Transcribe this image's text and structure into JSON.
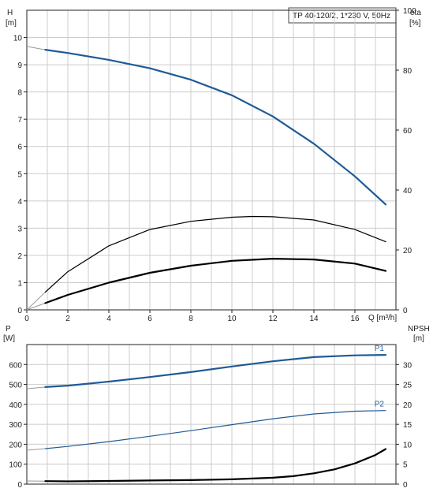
{
  "colors": {
    "blue": "#1f5a96",
    "black": "#000000",
    "grid": "#cccccc"
  },
  "chart_data": [
    {
      "type": "line",
      "title": "TP 40-120/2, 1*230 V, 50Hz",
      "xlabel": "Q [m³/h]",
      "ylabel_left": {
        "name": "H",
        "unit": "[m]"
      },
      "ylabel_right": {
        "name": "eta",
        "unit": "[%]"
      },
      "xlim": [
        0,
        18
      ],
      "ylim_left": [
        0,
        11
      ],
      "ylim_right": [
        0,
        100
      ],
      "x_ticks": [
        "0",
        "2",
        "4",
        "6",
        "8",
        "10",
        "12",
        "14",
        "16"
      ],
      "y_ticks_left": [
        "0",
        "1",
        "2",
        "3",
        "4",
        "5",
        "6",
        "7",
        "8",
        "9",
        "10"
      ],
      "y_ticks_right": [
        "0",
        "20",
        "40",
        "60",
        "80",
        "100"
      ],
      "grid": true,
      "series": [
        {
          "color": "#1f5a96",
          "width": 2.2,
          "axis": "left",
          "ref": {
            "x": [
              0,
              0.9
            ],
            "y": [
              9.67,
              9.55
            ]
          },
          "x": [
            0.9,
            2,
            4,
            6,
            8,
            10,
            12,
            14,
            16,
            17.5
          ],
          "y": [
            9.55,
            9.43,
            9.18,
            8.87,
            8.45,
            7.88,
            7.1,
            6.1,
            4.9,
            3.87
          ]
        },
        {
          "color": "#000000",
          "width": 1.2,
          "axis": "left",
          "ref": {
            "x": [
              0,
              0.9
            ],
            "y": [
              0,
              0.65
            ]
          },
          "x": [
            0.9,
            2,
            4,
            6,
            8,
            10,
            11,
            12,
            14,
            16,
            17.5
          ],
          "y": [
            0.65,
            1.4,
            2.35,
            2.95,
            3.25,
            3.4,
            3.43,
            3.42,
            3.3,
            2.95,
            2.5
          ]
        },
        {
          "color": "#000000",
          "width": 2.2,
          "axis": "left",
          "ref": {
            "x": [
              0,
              0.9
            ],
            "y": [
              0,
              0.25
            ]
          },
          "x": [
            0.9,
            2,
            4,
            6,
            8,
            10,
            12,
            14,
            16,
            17.5
          ],
          "y": [
            0.25,
            0.55,
            1.0,
            1.36,
            1.62,
            1.8,
            1.88,
            1.85,
            1.7,
            1.43
          ]
        }
      ]
    },
    {
      "type": "line",
      "ylabel_left": {
        "name": "P",
        "unit": "[W]"
      },
      "ylabel_right": {
        "name": "NPSH",
        "unit": "[m]"
      },
      "xlim": [
        0,
        18
      ],
      "ylim_left": [
        0,
        700
      ],
      "ylim_right": [
        0,
        35
      ],
      "y_ticks_left": [
        "0",
        "100",
        "200",
        "300",
        "400",
        "500",
        "600"
      ],
      "y_ticks_right": [
        "0",
        "5",
        "10",
        "15",
        "20",
        "25",
        "30"
      ],
      "grid": true,
      "series": [
        {
          "name": "P1",
          "color": "#1f5a96",
          "width": 2.2,
          "axis": "left",
          "ref": {
            "x": [
              0,
              0.9
            ],
            "y": [
              478,
              487
            ]
          },
          "x": [
            0.9,
            2,
            4,
            6,
            8,
            10,
            12,
            14,
            16,
            17.5
          ],
          "y": [
            487,
            494,
            514,
            537,
            562,
            590,
            616,
            637,
            646,
            648
          ]
        },
        {
          "name": "P2",
          "color": "#1f5a96",
          "width": 1.2,
          "axis": "left",
          "ref": {
            "x": [
              0,
              0.9
            ],
            "y": [
              170,
              178
            ]
          },
          "x": [
            0.9,
            2,
            4,
            6,
            8,
            10,
            12,
            14,
            16,
            17.5
          ],
          "y": [
            178,
            189,
            213,
            240,
            268,
            298,
            328,
            352,
            366,
            369
          ]
        },
        {
          "color": "#000000",
          "width": 2.2,
          "axis": "right",
          "ref": {
            "x": [
              0,
              0.9
            ],
            "y": [
              0.8,
              0.75
            ]
          },
          "x": [
            0.9,
            2,
            4,
            6,
            8,
            10,
            12,
            13,
            14,
            15,
            16,
            17,
            17.5
          ],
          "y": [
            0.75,
            0.7,
            0.8,
            0.9,
            1.0,
            1.2,
            1.6,
            2.0,
            2.7,
            3.7,
            5.2,
            7.3,
            8.8
          ]
        }
      ]
    }
  ]
}
